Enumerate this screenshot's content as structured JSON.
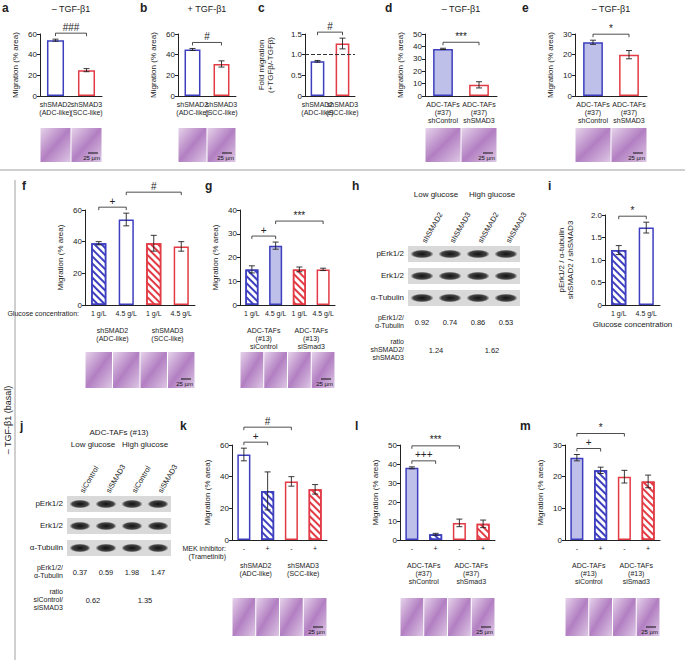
{
  "row_label": "– TGF-β1 (basal)",
  "chart_data": [
    {
      "panel": "a",
      "type": "bar",
      "header": "– TGF-β1",
      "y_label": "Migration (% area)",
      "categories": [
        "shSMAD2\n(ADC-like)",
        "shSMAD3\n(SCC-like)"
      ],
      "values": [
        54,
        25
      ],
      "errors": [
        1,
        1.5
      ],
      "colors": [
        "#3d3fbf",
        "#e23b45"
      ],
      "marker": [
        "outline",
        "outline"
      ],
      "ylim": [
        0,
        60
      ],
      "yticks": [
        0,
        20,
        40,
        60
      ],
      "annotations": [
        {
          "text": "###",
          "bars": [
            0,
            1
          ]
        }
      ],
      "scale_bar": "25 µm"
    },
    {
      "panel": "b",
      "type": "bar",
      "header": "+ TGF-β1",
      "y_label": "Migration (% area)",
      "categories": [
        "shSMAD2\n(ADC-like)",
        "shSMAD3\n(SCC-like)"
      ],
      "values": [
        45,
        31
      ],
      "errors": [
        1,
        3
      ],
      "colors": [
        "#3d3fbf",
        "#e23b45"
      ],
      "marker": [
        "outline",
        "outline"
      ],
      "ylim": [
        0,
        60
      ],
      "yticks": [
        0,
        20,
        40,
        60
      ],
      "annotations": [
        {
          "text": "#",
          "bars": [
            0,
            1
          ]
        }
      ],
      "scale_bar": "25 µm"
    },
    {
      "panel": "c",
      "type": "bar",
      "y_label": "Fold migration\n(+TGFβ/-TGFβ)",
      "categories": [
        "shSMAD2\n(ADC-like)",
        "shSMAD3\n(SCC-like)"
      ],
      "values": [
        0.84,
        1.27
      ],
      "errors": [
        0.02,
        0.13
      ],
      "colors": [
        "#3d3fbf",
        "#e23b45"
      ],
      "marker": [
        "outline",
        "outline"
      ],
      "ylim": [
        0,
        1.5
      ],
      "yticks": [
        0,
        0.5,
        {
          "value": 1,
          "label": "1.0"
        },
        1.5
      ],
      "reference": 1,
      "annotations": [
        {
          "text": "#",
          "bars": [
            0,
            1
          ]
        }
      ]
    },
    {
      "panel": "d",
      "type": "bar",
      "header": "– TGF-β1",
      "y_label": "Migration (% area)",
      "categories": [
        "ADC-TAFs\n(#37)\nshControl",
        "ADC-TAFs\n(#37)\nshSMAD3"
      ],
      "values": [
        38,
        9
      ],
      "errors": [
        0.5,
        2.5
      ],
      "colors": [
        "#3d3fbf",
        "#e23b45"
      ],
      "marker": [
        "filled",
        "outline"
      ],
      "ylim": [
        0,
        50
      ],
      "yticks": [
        0,
        10,
        20,
        30,
        40,
        50
      ],
      "annotations": [
        {
          "text": "***",
          "bars": [
            0,
            1
          ]
        }
      ],
      "scale_bar": "25 µm"
    },
    {
      "panel": "e",
      "type": "bar",
      "header": "– TGF-β1",
      "y_label": "Migration (% area)",
      "categories": [
        "ADC-TAFs\n(#37)\nshControl",
        "ADC-TAFs\n(#37)\nshSMAD3"
      ],
      "values": [
        26,
        20
      ],
      "errors": [
        1,
        2
      ],
      "colors": [
        "#3d3fbf",
        "#e23b45"
      ],
      "marker": [
        "filled",
        "outline"
      ],
      "ylim": [
        0,
        30
      ],
      "yticks": [
        0,
        10,
        20,
        30
      ],
      "annotations": [
        {
          "text": "*",
          "bars": [
            0,
            1
          ]
        }
      ],
      "scale_bar": "25 µm"
    },
    {
      "panel": "f",
      "type": "bar",
      "y_label": "Migration (% area)",
      "categories": [
        "1 g/L",
        "4.5 g/L",
        "1 g/L",
        "4.5 g/L"
      ],
      "groups": [
        "shSMAD2\n(ADC-like)",
        "shSMAD3\n(SCC-like)"
      ],
      "row_label": "Glucose concentration:",
      "values": [
        39,
        54,
        39,
        37
      ],
      "errors": [
        1,
        4,
        5,
        3
      ],
      "colors": [
        "#3d3fbf",
        "#3d3fbf",
        "#e23b45",
        "#e23b45"
      ],
      "marker": [
        "hatched",
        "outline",
        "hatched",
        "outline"
      ],
      "ylim": [
        0,
        60
      ],
      "yticks": [
        0,
        20,
        40,
        60
      ],
      "annotations": [
        {
          "text": "+",
          "bars": [
            0,
            1
          ]
        },
        {
          "text": "#",
          "bars": [
            1,
            3
          ]
        }
      ],
      "scale_bar": "25 µm"
    },
    {
      "panel": "g",
      "type": "bar",
      "y_label": "Migration (% area)",
      "categories": [
        "1 g/L",
        "4.5 g/L",
        "1 g/L",
        "4.5 g/L"
      ],
      "groups": [
        "ADC-TAFs\n(#13)\nsiControl",
        "ADC-TAFs\n(#13)\nsiSmad3"
      ],
      "values": [
        15,
        25,
        15,
        15
      ],
      "errors": [
        1.5,
        1.5,
        1,
        0.5
      ],
      "colors": [
        "#3d3fbf",
        "#3d3fbf",
        "#e23b45",
        "#e23b45"
      ],
      "marker": [
        "hatched",
        "filled",
        "hatched",
        "outline"
      ],
      "ylim": [
        0,
        40
      ],
      "yticks": [
        0,
        10,
        20,
        30,
        40
      ],
      "annotations": [
        {
          "text": "+",
          "bars": [
            0,
            1
          ]
        },
        {
          "text": "***",
          "bars": [
            1,
            3
          ]
        }
      ],
      "scale_bar": "25 µm"
    },
    {
      "panel": "i",
      "type": "bar",
      "y_label": "pErk1/2 / α-tubulin\nshSMAD2 / shSMAD3",
      "x_label": "Glucose concentration",
      "categories": [
        "1 g/L",
        "4.5 g/L"
      ],
      "values": [
        1.22,
        1.72
      ],
      "errors": [
        0.1,
        0.12
      ],
      "colors": [
        "#3d3fbf",
        "#3d3fbf"
      ],
      "marker": [
        "hatched",
        "outline"
      ],
      "ylim": [
        0,
        2
      ],
      "yticks": [
        0,
        0.5,
        {
          "value": 1,
          "label": "1.0"
        },
        1.5,
        {
          "value": 2,
          "label": "2.0"
        }
      ],
      "annotations": [
        {
          "text": "*",
          "bars": [
            0,
            1
          ]
        }
      ]
    },
    {
      "panel": "k",
      "type": "bar",
      "y_label": "Migration (% area)",
      "categories": [
        "-",
        "+",
        "-",
        "+"
      ],
      "groups": [
        "shSMAD2\n(ADC-like)",
        "shSMAD3\n(SCC-like)"
      ],
      "row_label": "MEK inhibitor:\n(Trametinib)",
      "values": [
        54,
        31,
        37,
        32
      ],
      "errors": [
        4,
        12,
        3,
        3
      ],
      "colors": [
        "#3d3fbf",
        "#3d3fbf",
        "#e23b45",
        "#e23b45"
      ],
      "marker": [
        "outline",
        "hatched",
        "outline",
        "hatched"
      ],
      "ylim": [
        0,
        60
      ],
      "yticks": [
        0,
        20,
        40,
        60
      ],
      "annotations": [
        {
          "text": "+",
          "bars": [
            0,
            1
          ]
        },
        {
          "text": "#",
          "bars": [
            0,
            2
          ]
        }
      ],
      "scale_bar": "25 µm"
    },
    {
      "panel": "l",
      "type": "bar",
      "y_label": "Migration (% area)",
      "categories": [
        "-",
        "+",
        "-",
        "+"
      ],
      "groups": [
        "ADC-TAFs\n(#37)\nshControl",
        "ADC-TAFs\n(#37)\nshSmad3"
      ],
      "values": [
        38,
        3,
        9,
        8.5
      ],
      "errors": [
        0.5,
        0.5,
        2,
        2
      ],
      "colors": [
        "#3d3fbf",
        "#3d3fbf",
        "#e23b45",
        "#e23b45"
      ],
      "marker": [
        "filled",
        "hatched",
        "outline",
        "hatched"
      ],
      "ylim": [
        0,
        50
      ],
      "yticks": [
        0,
        10,
        20,
        30,
        40,
        50
      ],
      "annotations": [
        {
          "text": "+++",
          "bars": [
            0,
            1
          ]
        },
        {
          "text": "***",
          "bars": [
            0,
            2
          ]
        }
      ],
      "scale_bar": "25 µm"
    },
    {
      "panel": "m",
      "type": "bar",
      "y_label": "Migration (% area)",
      "categories": [
        "-",
        "+",
        "-",
        "+"
      ],
      "groups": [
        "ADC-TAFs\n(#13)\nsiControl",
        "ADC-TAFs\n(#13)\nsiSmad3"
      ],
      "values": [
        26,
        22,
        20,
        18.5
      ],
      "errors": [
        1,
        1,
        2,
        2
      ],
      "colors": [
        "#3d3fbf",
        "#3d3fbf",
        "#e23b45",
        "#e23b45"
      ],
      "marker": [
        "filled",
        "hatched",
        "outline",
        "hatched"
      ],
      "ylim": [
        0,
        30
      ],
      "yticks": [
        0,
        10,
        20,
        30
      ],
      "annotations": [
        {
          "text": "+",
          "bars": [
            0,
            1
          ]
        },
        {
          "text": "*",
          "bars": [
            0,
            2
          ]
        }
      ],
      "scale_bar": "25 µm"
    }
  ],
  "western_blots": [
    {
      "panel": "h",
      "conditions": [
        "Low glucose",
        "High glucose"
      ],
      "lanes": [
        "shSMAD2",
        "shSMAD3",
        "shSMAD2",
        "shSMAD3"
      ],
      "bands": [
        "pErk1/2",
        "Erk1/2",
        "α-Tubulin"
      ],
      "ratio1_label": "pErk1/2/\nα-Tubulin",
      "ratio1": [
        0.92,
        0.74,
        0.86,
        0.53
      ],
      "ratio2_label": "ratio\nshSMAD2/\nshSMAD3",
      "ratio2": [
        1.24,
        1.62
      ]
    },
    {
      "panel": "j",
      "title": "ADC-TAFs (#13)",
      "conditions": [
        "Low glucose",
        "High glucose"
      ],
      "lanes": [
        "siControl",
        "siSMAD3",
        "siControl",
        "siSMAD3"
      ],
      "bands": [
        "pErk1/2",
        "Erk1/2",
        "α-Tubulin"
      ],
      "ratio1_label": "pErk1/2/\nα-Tubulin",
      "ratio1": [
        0.37,
        0.59,
        1.98,
        1.47
      ],
      "ratio2_label": "ratio\nsiControl/\nsiSMAD3",
      "ratio2": [
        0.62,
        1.35
      ]
    }
  ]
}
